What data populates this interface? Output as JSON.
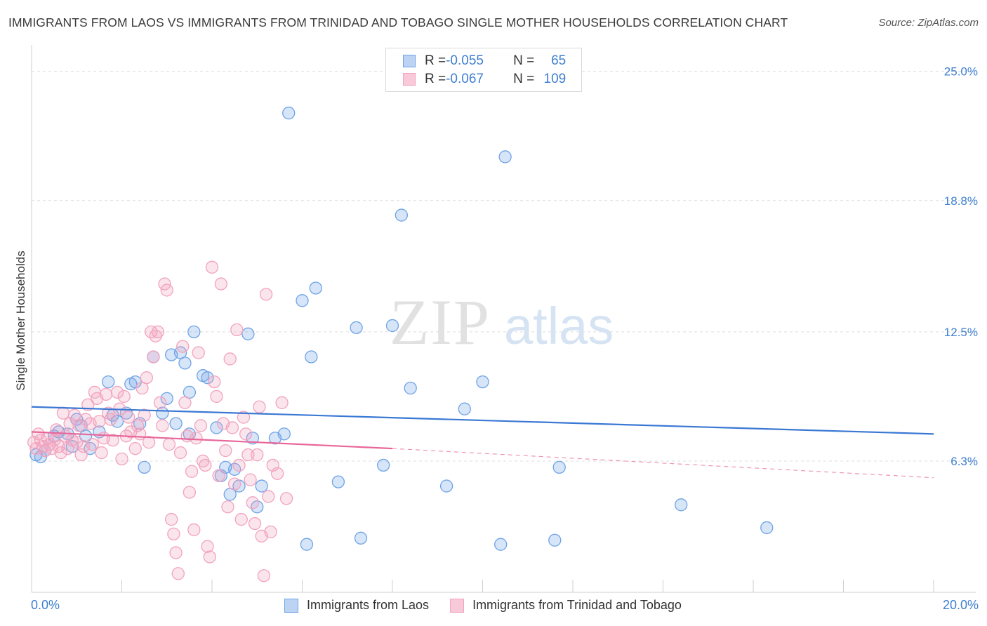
{
  "header": {
    "title": "IMMIGRANTS FROM LAOS VS IMMIGRANTS FROM TRINIDAD AND TOBAGO SINGLE MOTHER HOUSEHOLDS CORRELATION CHART",
    "source": "Source: ZipAtlas.com"
  },
  "watermark": {
    "zip": "ZIP",
    "atlas": "atlas"
  },
  "legend_top": {
    "rows": [
      {
        "r_label": "R = ",
        "r_value": "-0.055",
        "n_label": "N = ",
        "n_value": "65"
      },
      {
        "r_label": "R = ",
        "r_value": "-0.067",
        "n_label": "N = ",
        "n_value": "109"
      }
    ]
  },
  "chart_data": {
    "type": "scatter",
    "title": "IMMIGRANTS FROM LAOS VS IMMIGRANTS FROM TRINIDAD AND TOBAGO SINGLE MOTHER HOUSEHOLDS CORRELATION CHART",
    "xlabel": "",
    "ylabel": "Single Mother Households",
    "xlim": [
      0,
      20
    ],
    "ylim": [
      0,
      26
    ],
    "x_tick_labels": [
      "0.0%",
      "20.0%"
    ],
    "y_ticks": [
      6.3,
      12.5,
      18.8,
      25.0
    ],
    "y_tick_labels": [
      "6.3%",
      "12.5%",
      "18.8%",
      "25.0%"
    ],
    "grid": true,
    "legend_position": "top-center",
    "series": [
      {
        "name": "Immigrants from Laos",
        "color": "#6fa3e6",
        "line_color": "#3a78d4",
        "trend": {
          "x": [
            0,
            20
          ],
          "y": [
            8.9,
            7.6
          ]
        },
        "points": [
          [
            0.1,
            6.6
          ],
          [
            0.2,
            6.5
          ],
          [
            0.3,
            6.8
          ],
          [
            0.5,
            7.5
          ],
          [
            0.6,
            7.7
          ],
          [
            0.8,
            7.6
          ],
          [
            0.9,
            7.0
          ],
          [
            1.0,
            8.3
          ],
          [
            1.1,
            8.0
          ],
          [
            1.2,
            7.5
          ],
          [
            1.3,
            6.9
          ],
          [
            1.5,
            7.7
          ],
          [
            1.7,
            10.1
          ],
          [
            1.8,
            8.5
          ],
          [
            1.9,
            8.2
          ],
          [
            2.1,
            8.6
          ],
          [
            2.2,
            10.0
          ],
          [
            2.3,
            10.1
          ],
          [
            2.4,
            8.1
          ],
          [
            2.5,
            6.0
          ],
          [
            2.7,
            11.3
          ],
          [
            2.9,
            8.6
          ],
          [
            3.0,
            9.3
          ],
          [
            3.1,
            11.4
          ],
          [
            3.2,
            8.1
          ],
          [
            3.3,
            11.5
          ],
          [
            3.4,
            11.0
          ],
          [
            3.5,
            9.6
          ],
          [
            3.6,
            12.5
          ],
          [
            3.8,
            10.4
          ],
          [
            3.9,
            10.3
          ],
          [
            4.1,
            7.9
          ],
          [
            4.2,
            5.6
          ],
          [
            4.3,
            6.0
          ],
          [
            4.4,
            4.7
          ],
          [
            4.5,
            5.9
          ],
          [
            4.6,
            5.1
          ],
          [
            4.8,
            12.4
          ],
          [
            4.9,
            7.4
          ],
          [
            5.0,
            4.1
          ],
          [
            5.1,
            5.1
          ],
          [
            5.4,
            7.4
          ],
          [
            5.6,
            7.6
          ],
          [
            5.7,
            23.0
          ],
          [
            6.0,
            14.0
          ],
          [
            6.1,
            2.3
          ],
          [
            6.2,
            11.3
          ],
          [
            6.3,
            14.6
          ],
          [
            6.8,
            5.3
          ],
          [
            7.2,
            12.7
          ],
          [
            7.3,
            2.6
          ],
          [
            7.8,
            6.1
          ],
          [
            8.0,
            12.8
          ],
          [
            8.2,
            18.1
          ],
          [
            8.4,
            9.8
          ],
          [
            9.2,
            5.1
          ],
          [
            9.6,
            8.8
          ],
          [
            10.0,
            10.1
          ],
          [
            10.4,
            2.3
          ],
          [
            10.5,
            20.9
          ],
          [
            11.6,
            2.5
          ],
          [
            11.7,
            6.0
          ],
          [
            14.4,
            4.2
          ],
          [
            16.3,
            3.1
          ],
          [
            3.5,
            7.6
          ]
        ]
      },
      {
        "name": "Immigrants from Trinidad and Tobago",
        "color": "#f2a3bd",
        "line_color": "#e8679a",
        "trend": {
          "x": [
            0,
            8.0
          ],
          "y": [
            7.7,
            6.9
          ]
        },
        "trend_dashed": {
          "x": [
            8.0,
            20
          ],
          "y": [
            6.9,
            5.5
          ]
        },
        "points": [
          [
            0.05,
            7.2
          ],
          [
            0.1,
            6.9
          ],
          [
            0.15,
            7.6
          ],
          [
            0.2,
            7.3
          ],
          [
            0.25,
            7.0
          ],
          [
            0.3,
            6.8
          ],
          [
            0.35,
            7.4
          ],
          [
            0.4,
            7.1
          ],
          [
            0.45,
            6.9
          ],
          [
            0.5,
            7.3
          ],
          [
            0.55,
            7.8
          ],
          [
            0.6,
            7.0
          ],
          [
            0.65,
            6.7
          ],
          [
            0.7,
            8.6
          ],
          [
            0.75,
            7.5
          ],
          [
            0.8,
            6.9
          ],
          [
            0.85,
            8.1
          ],
          [
            0.9,
            7.3
          ],
          [
            0.95,
            8.5
          ],
          [
            1.0,
            7.2
          ],
          [
            1.05,
            8.0
          ],
          [
            1.1,
            6.6
          ],
          [
            1.15,
            7.0
          ],
          [
            1.2,
            8.3
          ],
          [
            1.25,
            9.0
          ],
          [
            1.3,
            8.1
          ],
          [
            1.35,
            7.1
          ],
          [
            1.4,
            9.6
          ],
          [
            1.45,
            9.3
          ],
          [
            1.5,
            8.2
          ],
          [
            1.55,
            6.7
          ],
          [
            1.6,
            7.4
          ],
          [
            1.65,
            9.5
          ],
          [
            1.7,
            8.6
          ],
          [
            1.75,
            8.3
          ],
          [
            1.8,
            7.3
          ],
          [
            1.9,
            9.6
          ],
          [
            1.95,
            8.8
          ],
          [
            2.0,
            6.4
          ],
          [
            2.05,
            9.4
          ],
          [
            2.1,
            7.5
          ],
          [
            2.15,
            8.4
          ],
          [
            2.2,
            7.7
          ],
          [
            2.3,
            6.9
          ],
          [
            2.35,
            8.0
          ],
          [
            2.4,
            7.6
          ],
          [
            2.45,
            9.8
          ],
          [
            2.5,
            8.5
          ],
          [
            2.55,
            10.3
          ],
          [
            2.6,
            7.2
          ],
          [
            2.65,
            12.5
          ],
          [
            2.7,
            11.3
          ],
          [
            2.75,
            12.3
          ],
          [
            2.8,
            12.5
          ],
          [
            2.85,
            9.1
          ],
          [
            2.9,
            8.0
          ],
          [
            2.95,
            14.8
          ],
          [
            3.0,
            14.5
          ],
          [
            3.05,
            7.1
          ],
          [
            3.1,
            3.5
          ],
          [
            3.15,
            2.8
          ],
          [
            3.2,
            1.9
          ],
          [
            3.25,
            0.9
          ],
          [
            3.3,
            6.7
          ],
          [
            3.35,
            11.8
          ],
          [
            3.4,
            9.1
          ],
          [
            3.45,
            7.5
          ],
          [
            3.5,
            4.8
          ],
          [
            3.55,
            5.8
          ],
          [
            3.6,
            3.0
          ],
          [
            3.65,
            7.4
          ],
          [
            3.7,
            11.5
          ],
          [
            3.75,
            8.0
          ],
          [
            3.8,
            6.3
          ],
          [
            3.85,
            6.1
          ],
          [
            3.9,
            2.2
          ],
          [
            3.95,
            1.7
          ],
          [
            4.0,
            15.6
          ],
          [
            4.05,
            10.1
          ],
          [
            4.1,
            9.4
          ],
          [
            4.15,
            5.6
          ],
          [
            4.2,
            14.8
          ],
          [
            4.25,
            8.1
          ],
          [
            4.3,
            6.8
          ],
          [
            4.35,
            4.1
          ],
          [
            4.4,
            11.2
          ],
          [
            4.45,
            7.9
          ],
          [
            4.5,
            5.2
          ],
          [
            4.55,
            12.6
          ],
          [
            4.6,
            6.1
          ],
          [
            4.65,
            3.5
          ],
          [
            4.7,
            8.4
          ],
          [
            4.75,
            7.6
          ],
          [
            4.8,
            6.6
          ],
          [
            4.85,
            5.4
          ],
          [
            4.9,
            4.3
          ],
          [
            4.95,
            3.3
          ],
          [
            5.0,
            6.6
          ],
          [
            5.05,
            8.9
          ],
          [
            5.1,
            2.7
          ],
          [
            5.15,
            0.8
          ],
          [
            5.2,
            14.3
          ],
          [
            5.25,
            4.6
          ],
          [
            5.3,
            2.9
          ],
          [
            5.35,
            6.1
          ],
          [
            5.45,
            5.7
          ],
          [
            5.55,
            9.1
          ],
          [
            5.65,
            4.5
          ]
        ]
      }
    ]
  },
  "legend_bottom": {
    "items": [
      {
        "label": "Immigrants from Laos"
      },
      {
        "label": "Immigrants from Trinidad and Tobago"
      }
    ]
  }
}
